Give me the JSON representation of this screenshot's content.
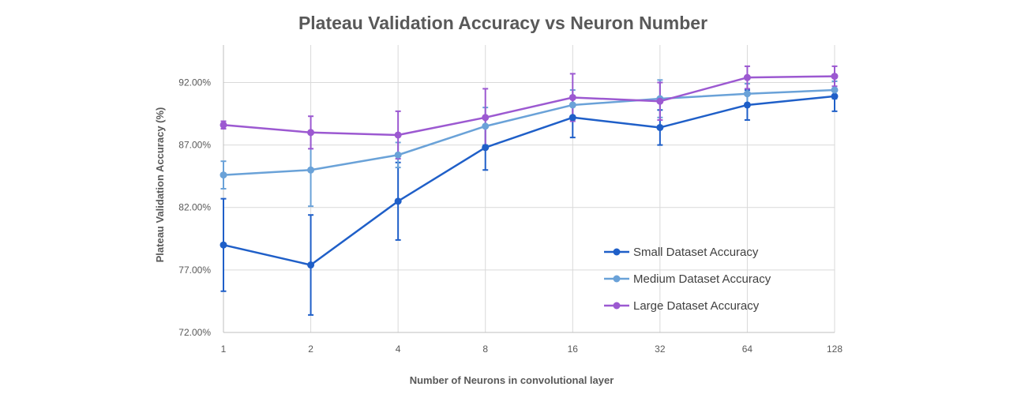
{
  "chart_data": {
    "type": "line",
    "title": "Plateau Validation Accuracy vs Neuron Number",
    "xlabel": "Number of Neurons in convolutional layer",
    "ylabel": "Plateau Validation Accuracy (%)",
    "categories": [
      "1",
      "2",
      "4",
      "8",
      "16",
      "32",
      "64",
      "128"
    ],
    "y_ticks": [
      "72.00%",
      "77.00%",
      "82.00%",
      "87.00%",
      "92.00%"
    ],
    "ylim": [
      72,
      95
    ],
    "grid": true,
    "legend_position": "bottom-right",
    "series": [
      {
        "name": "Small Dataset Accuracy",
        "color": "#1f5fc8",
        "values": [
          79.0,
          77.4,
          82.5,
          86.8,
          89.2,
          88.4,
          90.2,
          90.9
        ],
        "error": [
          3.7,
          4.0,
          3.1,
          1.8,
          1.6,
          1.4,
          1.2,
          1.2
        ]
      },
      {
        "name": "Medium Dataset Accuracy",
        "color": "#6aa2d8",
        "values": [
          84.6,
          85.0,
          86.2,
          88.5,
          90.2,
          90.7,
          91.1,
          91.4
        ],
        "error": [
          1.1,
          2.9,
          1.0,
          1.5,
          1.2,
          1.5,
          0.8,
          0.7
        ]
      },
      {
        "name": "Large Dataset Accuracy",
        "color": "#9c59d1",
        "values": [
          88.6,
          88.0,
          87.8,
          89.2,
          90.8,
          90.5,
          92.4,
          92.5
        ],
        "error": [
          0.3,
          1.3,
          1.9,
          2.3,
          1.9,
          1.5,
          0.9,
          0.8
        ]
      }
    ]
  }
}
